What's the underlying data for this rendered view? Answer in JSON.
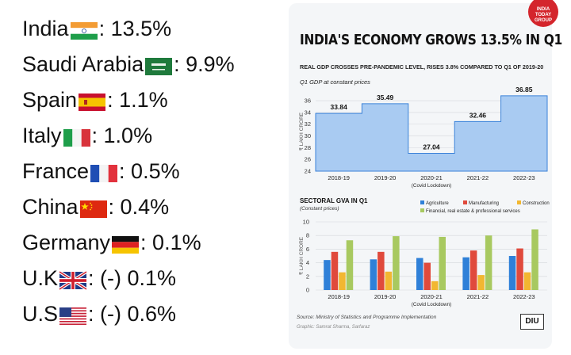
{
  "country_list": [
    {
      "name": "India",
      "flag": "india-flag",
      "value": ": 13.5%"
    },
    {
      "name": "Saudi Arabia",
      "flag": "saudi-arabia-flag",
      "value": ": 9.9%"
    },
    {
      "name": "Spain",
      "flag": "spain-flag",
      "value": ": 1.1%"
    },
    {
      "name": "Italy",
      "flag": "italy-flag",
      "value": ": 1.0%"
    },
    {
      "name": "France",
      "flag": "france-flag",
      "value": ": 0.5%"
    },
    {
      "name": "China",
      "flag": "china-flag",
      "value": ": 0.4%"
    },
    {
      "name": "Germany",
      "flag": "germany-flag",
      "value": ": 0.1%"
    },
    {
      "name": "U.K",
      "flag": "uk-flag",
      "value": ": (-) 0.1%"
    },
    {
      "name": "U.S",
      "flag": "us-flag",
      "value": ": (-) 0.6%"
    }
  ],
  "infographic": {
    "headline": "INDIA'S ECONOMY GROWS 13.5% IN Q1",
    "subheadline": "REAL GDP CROSSES PRE-PANDEMIC LEVEL, RISES 3.8% COMPARED TO Q1 OF 2019-20",
    "logo_text": "INDIA TODAY GROUP",
    "source": "Source: Ministry of Statistics and Programme Implementation",
    "credit": "Graphic: Samrat Sharma, Sarfaraz",
    "badge": "DIU"
  },
  "chart_data": [
    {
      "type": "area",
      "title": "Q1 GDP at constant prices",
      "ylabel": "₹ LAKH CRORE",
      "categories": [
        "2018-19",
        "2019-20",
        "2020-21",
        "2021-22",
        "2022-23"
      ],
      "category_notes": [
        "",
        "",
        "(Covid Lockdown)",
        "",
        ""
      ],
      "values": [
        33.84,
        35.49,
        27.04,
        32.46,
        36.85
      ],
      "value_labels": [
        "33.84",
        "35.49",
        "27.04",
        "32.46",
        "36.85"
      ],
      "yticks": [
        24,
        26,
        28,
        30,
        32,
        34,
        36
      ],
      "ylim": [
        24,
        37.5
      ],
      "grid": true,
      "color": "#a9cbf2",
      "line_color": "#3b82d9"
    },
    {
      "type": "bar",
      "title": "SECTORAL GVA IN Q1",
      "subtitle": "(Constant prices)",
      "ylabel": "₹ LAKH CRORE",
      "categories": [
        "2018-19",
        "2019-20",
        "2020-21",
        "2021-22",
        "2022-23"
      ],
      "category_notes": [
        "",
        "",
        "(Covid Lockdown)",
        "",
        ""
      ],
      "yticks": [
        0,
        2,
        4,
        6,
        8,
        10
      ],
      "ylim": [
        0,
        10
      ],
      "grid": true,
      "legend_position": "top-right",
      "series": [
        {
          "name": "Agriculture",
          "color": "#2f80d8",
          "values": [
            4.4,
            4.5,
            4.7,
            4.8,
            5.0
          ]
        },
        {
          "name": "Manufacturing",
          "color": "#e04a3c",
          "values": [
            5.6,
            5.6,
            4.0,
            5.8,
            6.1
          ]
        },
        {
          "name": "Construction",
          "color": "#f2b731",
          "values": [
            2.6,
            2.7,
            1.3,
            2.2,
            2.6
          ]
        },
        {
          "name": "Financial, real estate & professional services",
          "color": "#a8c960",
          "values": [
            7.3,
            7.9,
            7.8,
            8.0,
            8.9
          ]
        }
      ]
    }
  ]
}
